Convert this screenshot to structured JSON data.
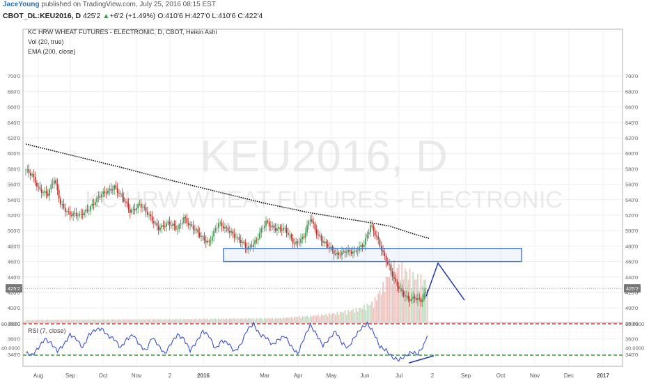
{
  "publisher": {
    "author": "JaceYoung",
    "text": "published on TradingView.com, July 25, 2016 08:15 EST"
  },
  "symbol_bar": {
    "symbol": "CBOT_DL:KEU2016, D",
    "price": "425'2",
    "change_arrow": "▲",
    "change": "+6'2 (+1.49%)",
    "ohlc": "O:410'6 H:427'0 L:410'6 C:422'4"
  },
  "legend": {
    "line1": "KC HRW WHEAT FUTURES - ELECTRONIC, D, CBOT, Heikin Ashi",
    "line2": "Vol (20, true)",
    "line3": "EMA (200, close)"
  },
  "watermark": {
    "line1": "KEU2016, D",
    "line2": "KC HRW WHEAT FUTURES - ELECTRONIC"
  },
  "rsi_label": "RSI (7, close)",
  "colors": {
    "up": "#3c9a4e",
    "down": "#b2342c",
    "ema": "#111111",
    "rect": "#4a7fd4",
    "rsi": "#3a4fcf",
    "rsi_upper": "#e53935",
    "rsi_lower": "#2aa52a",
    "annotation": "#1f35b0"
  },
  "chart_data": [
    {
      "type": "candlestick",
      "title": "KC HRW WHEAT FUTURES - ELECTRONIC, D, CBOT, Heikin Ashi",
      "ylim": [
        320,
        710
      ],
      "y_ticks": [
        "700'0",
        "680'0",
        "660'0",
        "640'0",
        "620'0",
        "600'0",
        "580'0",
        "560'0",
        "540'0",
        "520'0",
        "500'0",
        "480'0",
        "460'0",
        "440'0",
        "420'0",
        "400'0",
        "380'0",
        "360'0",
        "340'0"
      ],
      "x_ticks": [
        "Aug",
        "Sep",
        "Oct",
        "Nov",
        "2",
        "2016",
        "Mar",
        "Apr",
        "May",
        "Jun",
        "Jul",
        "2",
        "Sep",
        "Oct",
        "Nov",
        "Dec",
        "2017"
      ],
      "last_price_label": "425'2",
      "last_price": 425.25,
      "ema_label": "EMA (200, close)",
      "price_anchors": [
        [
          0,
          578
        ],
        [
          4,
          570
        ],
        [
          8,
          555
        ],
        [
          14,
          548
        ],
        [
          18,
          565
        ],
        [
          22,
          535
        ],
        [
          28,
          522
        ],
        [
          34,
          518
        ],
        [
          40,
          530
        ],
        [
          46,
          542
        ],
        [
          52,
          552
        ],
        [
          56,
          558
        ],
        [
          60,
          545
        ],
        [
          66,
          525
        ],
        [
          72,
          535
        ],
        [
          78,
          518
        ],
        [
          84,
          505
        ],
        [
          90,
          508
        ],
        [
          96,
          503
        ],
        [
          100,
          518
        ],
        [
          104,
          505
        ],
        [
          110,
          495
        ],
        [
          116,
          485
        ],
        [
          122,
          508
        ],
        [
          128,
          503
        ],
        [
          134,
          488
        ],
        [
          140,
          478
        ],
        [
          146,
          488
        ],
        [
          152,
          510
        ],
        [
          158,
          504
        ],
        [
          164,
          500
        ],
        [
          170,
          484
        ],
        [
          176,
          492
        ],
        [
          180,
          515
        ],
        [
          184,
          498
        ],
        [
          190,
          482
        ],
        [
          196,
          468
        ],
        [
          202,
          475
        ],
        [
          208,
          470
        ],
        [
          214,
          484
        ],
        [
          218,
          508
        ],
        [
          222,
          490
        ],
        [
          226,
          470
        ],
        [
          230,
          455
        ],
        [
          234,
          432
        ],
        [
          238,
          418
        ],
        [
          242,
          412
        ],
        [
          246,
          415
        ],
        [
          250,
          408
        ],
        [
          254,
          422
        ]
      ],
      "ema_anchors": [
        [
          0,
          612
        ],
        [
          30,
          597
        ],
        [
          60,
          582
        ],
        [
          90,
          566
        ],
        [
          120,
          551
        ],
        [
          150,
          536
        ],
        [
          180,
          523
        ],
        [
          210,
          513
        ],
        [
          230,
          506
        ],
        [
          245,
          496
        ],
        [
          255,
          490
        ]
      ],
      "volume_anchors": [
        [
          0,
          2
        ],
        [
          100,
          3
        ],
        [
          160,
          4
        ],
        [
          190,
          8
        ],
        [
          210,
          14
        ],
        [
          220,
          22
        ],
        [
          226,
          40
        ],
        [
          232,
          63
        ],
        [
          238,
          60
        ],
        [
          244,
          52
        ],
        [
          250,
          48
        ],
        [
          254,
          45
        ]
      ],
      "volume_max": 70,
      "support_zone": [
        460,
        477
      ],
      "projection_path": [
        [
          415,
          "2016-07-25"
        ],
        [
          458,
          "2016-08-10"
        ],
        [
          410,
          "2016-08-26"
        ]
      ]
    },
    {
      "type": "line",
      "title": "RSI (7, close)",
      "ylim": [
        10,
        90
      ],
      "y_ticks": [
        "80.0000",
        "40.0000"
      ],
      "reference_lines": [
        80,
        28
      ],
      "rsi_anchors": [
        [
          0,
          32
        ],
        [
          4,
          28
        ],
        [
          8,
          40
        ],
        [
          12,
          55
        ],
        [
          16,
          48
        ],
        [
          20,
          35
        ],
        [
          24,
          45
        ],
        [
          28,
          62
        ],
        [
          32,
          55
        ],
        [
          36,
          40
        ],
        [
          40,
          62
        ],
        [
          44,
          70
        ],
        [
          48,
          72
        ],
        [
          52,
          60
        ],
        [
          56,
          55
        ],
        [
          60,
          40
        ],
        [
          64,
          55
        ],
        [
          68,
          62
        ],
        [
          72,
          45
        ],
        [
          76,
          35
        ],
        [
          80,
          58
        ],
        [
          84,
          44
        ],
        [
          88,
          30
        ],
        [
          92,
          48
        ],
        [
          96,
          62
        ],
        [
          100,
          55
        ],
        [
          104,
          36
        ],
        [
          108,
          50
        ],
        [
          112,
          68
        ],
        [
          116,
          60
        ],
        [
          120,
          38
        ],
        [
          124,
          52
        ],
        [
          128,
          48
        ],
        [
          132,
          34
        ],
        [
          136,
          45
        ],
        [
          140,
          70
        ],
        [
          144,
          80
        ],
        [
          148,
          62
        ],
        [
          152,
          58
        ],
        [
          156,
          45
        ],
        [
          160,
          54
        ],
        [
          164,
          60
        ],
        [
          168,
          42
        ],
        [
          172,
          30
        ],
        [
          176,
          56
        ],
        [
          180,
          78
        ],
        [
          184,
          62
        ],
        [
          188,
          44
        ],
        [
          192,
          55
        ],
        [
          196,
          68
        ],
        [
          200,
          48
        ],
        [
          204,
          40
        ],
        [
          208,
          58
        ],
        [
          212,
          72
        ],
        [
          216,
          80
        ],
        [
          220,
          66
        ],
        [
          224,
          42
        ],
        [
          228,
          36
        ],
        [
          232,
          24
        ],
        [
          236,
          20
        ],
        [
          240,
          26
        ],
        [
          244,
          33
        ],
        [
          248,
          30
        ],
        [
          252,
          45
        ],
        [
          254,
          62
        ]
      ],
      "rsi_trendline": [
        [
          15,
          "2016-07-11"
        ],
        [
          27,
          "2016-08-01"
        ]
      ]
    }
  ]
}
